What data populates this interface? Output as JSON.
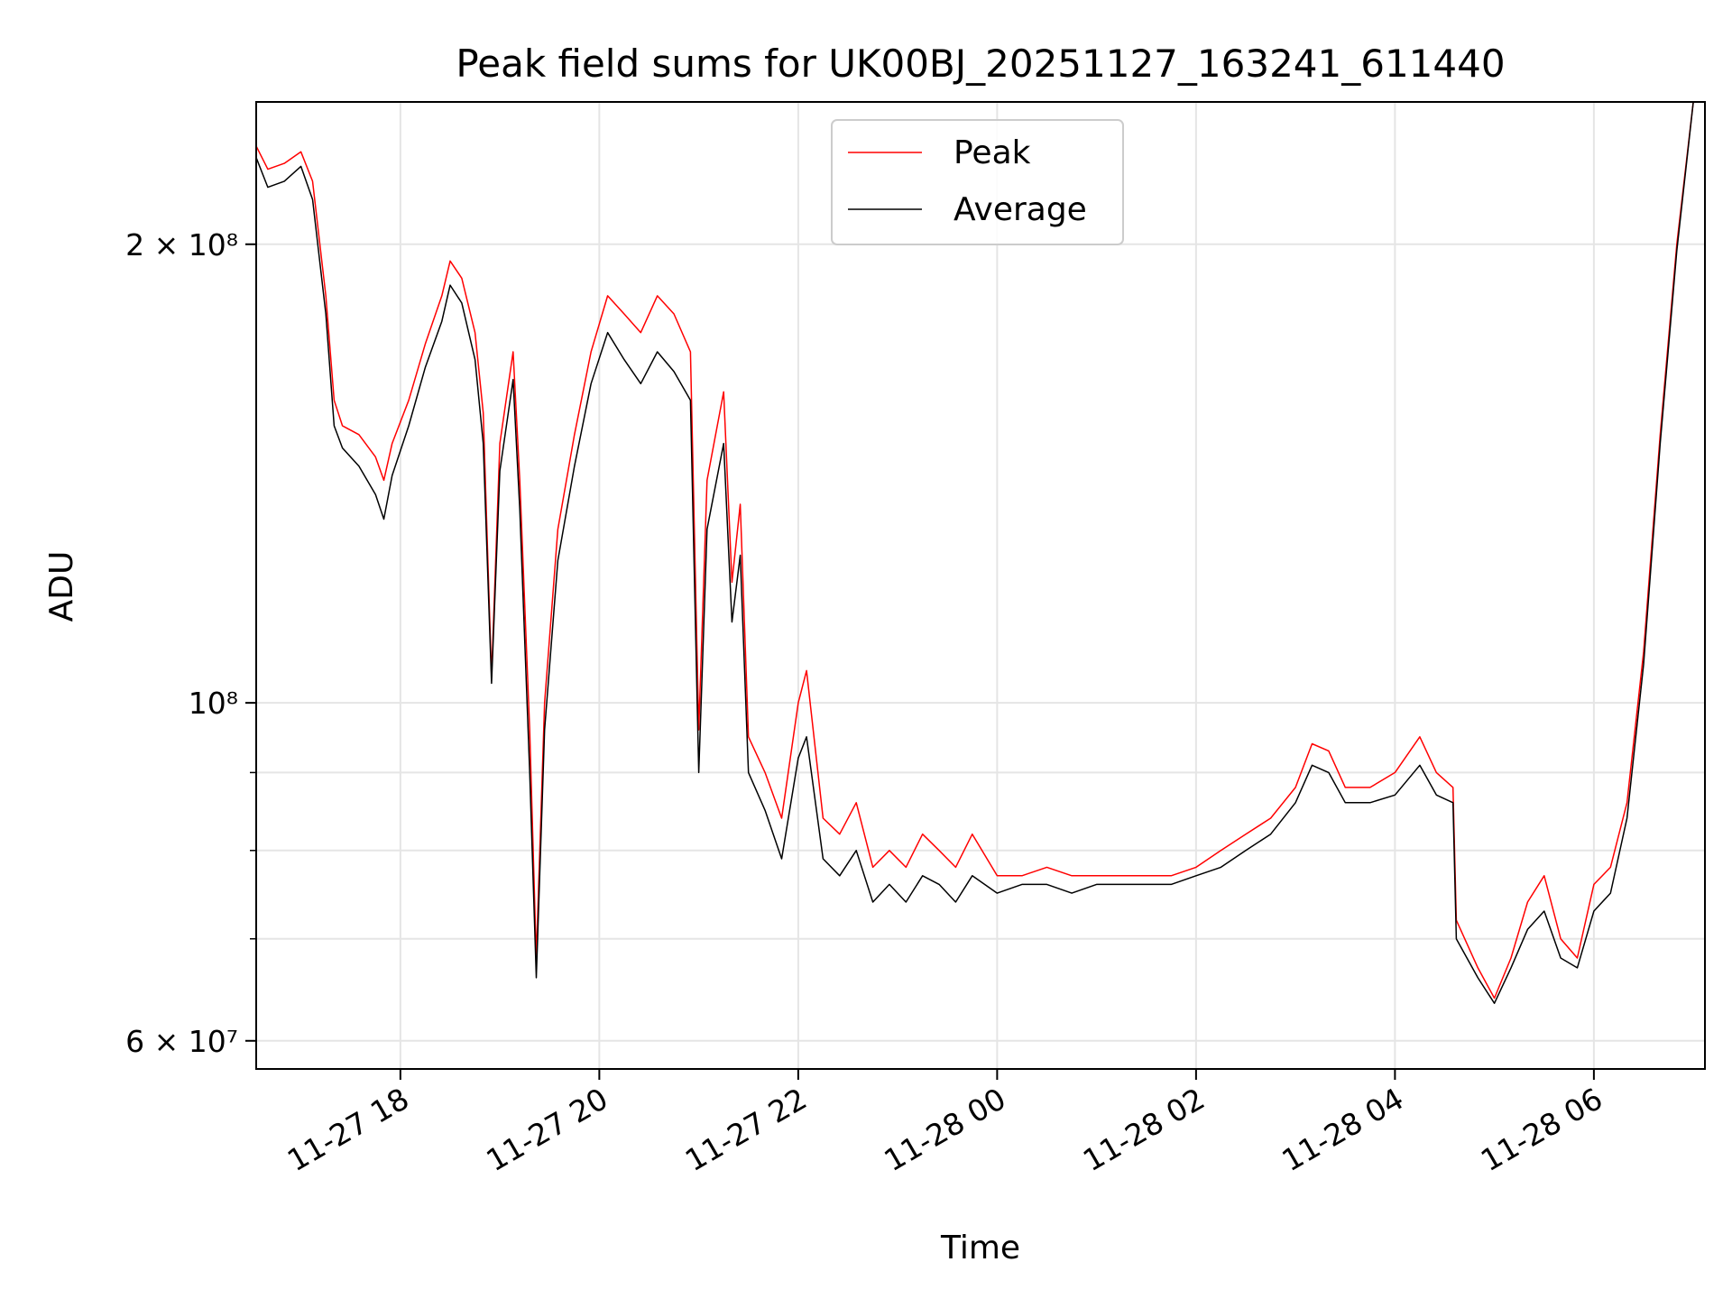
{
  "chart_data": {
    "type": "line",
    "title": "Peak field sums for UK00BJ_20251127_163241_611440",
    "xlabel": "Time",
    "ylabel": "ADU",
    "yscale": "log",
    "xlim": [
      "2025-11-27 16:33",
      "2025-11-28 07:07"
    ],
    "ylim": [
      57500000,
      248000000
    ],
    "grid": true,
    "legend_position": "upper center",
    "x_ticks": [
      {
        "t": "2025-11-27 18:00",
        "label": "11-27 18"
      },
      {
        "t": "2025-11-27 20:00",
        "label": "11-27 20"
      },
      {
        "t": "2025-11-27 22:00",
        "label": "11-27 22"
      },
      {
        "t": "2025-11-28 00:00",
        "label": "11-28 00"
      },
      {
        "t": "2025-11-28 02:00",
        "label": "11-28 02"
      },
      {
        "t": "2025-11-28 04:00",
        "label": "11-28 04"
      },
      {
        "t": "2025-11-28 06:00",
        "label": "11-28 06"
      }
    ],
    "y_ticks_major": [
      {
        "value": 60000000,
        "label": "6 × 10⁷"
      },
      {
        "value": 100000000,
        "label": "10⁸"
      },
      {
        "value": 200000000,
        "label": "2 × 10⁸"
      }
    ],
    "y_ticks_minor": [
      70000000,
      80000000,
      90000000
    ],
    "series": [
      {
        "name": "Peak",
        "color": "#ff0000",
        "points": [
          [
            "2025-11-27 16:33",
            232000000
          ],
          [
            "2025-11-27 16:40",
            224000000
          ],
          [
            "2025-11-27 16:50",
            226000000
          ],
          [
            "2025-11-27 17:00",
            230000000
          ],
          [
            "2025-11-27 17:07",
            220000000
          ],
          [
            "2025-11-27 17:15",
            185000000
          ],
          [
            "2025-11-27 17:20",
            158000000
          ],
          [
            "2025-11-27 17:25",
            152000000
          ],
          [
            "2025-11-27 17:35",
            150000000
          ],
          [
            "2025-11-27 17:45",
            145000000
          ],
          [
            "2025-11-27 17:50",
            140000000
          ],
          [
            "2025-11-27 17:55",
            148000000
          ],
          [
            "2025-11-27 18:05",
            158000000
          ],
          [
            "2025-11-27 18:15",
            172000000
          ],
          [
            "2025-11-27 18:25",
            185000000
          ],
          [
            "2025-11-27 18:30",
            195000000
          ],
          [
            "2025-11-27 18:37",
            190000000
          ],
          [
            "2025-11-27 18:45",
            175000000
          ],
          [
            "2025-11-27 18:50",
            155000000
          ],
          [
            "2025-11-27 18:55",
            104000000
          ],
          [
            "2025-11-27 19:00",
            148000000
          ],
          [
            "2025-11-27 19:08",
            170000000
          ],
          [
            "2025-11-27 19:12",
            140000000
          ],
          [
            "2025-11-27 19:18",
            96000000
          ],
          [
            "2025-11-27 19:22",
            68000000
          ],
          [
            "2025-11-27 19:27",
            100000000
          ],
          [
            "2025-11-27 19:35",
            130000000
          ],
          [
            "2025-11-27 19:45",
            150000000
          ],
          [
            "2025-11-27 19:55",
            170000000
          ],
          [
            "2025-11-27 20:05",
            185000000
          ],
          [
            "2025-11-27 20:15",
            180000000
          ],
          [
            "2025-11-27 20:25",
            175000000
          ],
          [
            "2025-11-27 20:35",
            185000000
          ],
          [
            "2025-11-27 20:45",
            180000000
          ],
          [
            "2025-11-27 20:55",
            170000000
          ],
          [
            "2025-11-27 21:00",
            96000000
          ],
          [
            "2025-11-27 21:05",
            140000000
          ],
          [
            "2025-11-27 21:15",
            160000000
          ],
          [
            "2025-11-27 21:20",
            120000000
          ],
          [
            "2025-11-27 21:25",
            135000000
          ],
          [
            "2025-11-27 21:30",
            95000000
          ],
          [
            "2025-11-27 21:40",
            90000000
          ],
          [
            "2025-11-27 21:50",
            84000000
          ],
          [
            "2025-11-27 22:00",
            100000000
          ],
          [
            "2025-11-27 22:05",
            105000000
          ],
          [
            "2025-11-27 22:15",
            84000000
          ],
          [
            "2025-11-27 22:25",
            82000000
          ],
          [
            "2025-11-27 22:35",
            86000000
          ],
          [
            "2025-11-27 22:45",
            78000000
          ],
          [
            "2025-11-27 22:55",
            80000000
          ],
          [
            "2025-11-27 23:05",
            78000000
          ],
          [
            "2025-11-27 23:15",
            82000000
          ],
          [
            "2025-11-27 23:25",
            80000000
          ],
          [
            "2025-11-27 23:35",
            78000000
          ],
          [
            "2025-11-27 23:45",
            82000000
          ],
          [
            "2025-11-28 00:00",
            77000000
          ],
          [
            "2025-11-28 00:15",
            77000000
          ],
          [
            "2025-11-28 00:30",
            78000000
          ],
          [
            "2025-11-28 00:45",
            77000000
          ],
          [
            "2025-11-28 01:00",
            77000000
          ],
          [
            "2025-11-28 01:15",
            77000000
          ],
          [
            "2025-11-28 01:30",
            77000000
          ],
          [
            "2025-11-28 01:45",
            77000000
          ],
          [
            "2025-11-28 02:00",
            78000000
          ],
          [
            "2025-11-28 02:15",
            80000000
          ],
          [
            "2025-11-28 02:30",
            82000000
          ],
          [
            "2025-11-28 02:45",
            84000000
          ],
          [
            "2025-11-28 03:00",
            88000000
          ],
          [
            "2025-11-28 03:10",
            94000000
          ],
          [
            "2025-11-28 03:20",
            93000000
          ],
          [
            "2025-11-28 03:30",
            88000000
          ],
          [
            "2025-11-28 03:45",
            88000000
          ],
          [
            "2025-11-28 04:00",
            90000000
          ],
          [
            "2025-11-28 04:15",
            95000000
          ],
          [
            "2025-11-28 04:25",
            90000000
          ],
          [
            "2025-11-28 04:35",
            88000000
          ],
          [
            "2025-11-28 04:37",
            72000000
          ],
          [
            "2025-11-28 04:50",
            67000000
          ],
          [
            "2025-11-28 05:00",
            64000000
          ],
          [
            "2025-11-28 05:10",
            68000000
          ],
          [
            "2025-11-28 05:20",
            74000000
          ],
          [
            "2025-11-28 05:30",
            77000000
          ],
          [
            "2025-11-28 05:40",
            70000000
          ],
          [
            "2025-11-28 05:50",
            68000000
          ],
          [
            "2025-11-28 06:00",
            76000000
          ],
          [
            "2025-11-28 06:10",
            78000000
          ],
          [
            "2025-11-28 06:20",
            86000000
          ],
          [
            "2025-11-28 06:30",
            108000000
          ],
          [
            "2025-11-28 06:40",
            150000000
          ],
          [
            "2025-11-28 06:50",
            200000000
          ],
          [
            "2025-11-28 07:00",
            248000000
          ]
        ]
      },
      {
        "name": "Average",
        "color": "#000000",
        "points": [
          [
            "2025-11-27 16:33",
            228000000
          ],
          [
            "2025-11-27 16:40",
            218000000
          ],
          [
            "2025-11-27 16:50",
            220000000
          ],
          [
            "2025-11-27 17:00",
            225000000
          ],
          [
            "2025-11-27 17:07",
            214000000
          ],
          [
            "2025-11-27 17:15",
            180000000
          ],
          [
            "2025-11-27 17:20",
            152000000
          ],
          [
            "2025-11-27 17:25",
            147000000
          ],
          [
            "2025-11-27 17:35",
            143000000
          ],
          [
            "2025-11-27 17:45",
            137000000
          ],
          [
            "2025-11-27 17:50",
            132000000
          ],
          [
            "2025-11-27 17:55",
            141000000
          ],
          [
            "2025-11-27 18:05",
            152000000
          ],
          [
            "2025-11-27 18:15",
            166000000
          ],
          [
            "2025-11-27 18:25",
            178000000
          ],
          [
            "2025-11-27 18:30",
            188000000
          ],
          [
            "2025-11-27 18:37",
            183000000
          ],
          [
            "2025-11-27 18:45",
            168000000
          ],
          [
            "2025-11-27 18:50",
            148000000
          ],
          [
            "2025-11-27 18:55",
            103000000
          ],
          [
            "2025-11-27 19:00",
            142000000
          ],
          [
            "2025-11-27 19:08",
            163000000
          ],
          [
            "2025-11-27 19:12",
            134000000
          ],
          [
            "2025-11-27 19:18",
            90000000
          ],
          [
            "2025-11-27 19:22",
            66000000
          ],
          [
            "2025-11-27 19:27",
            96000000
          ],
          [
            "2025-11-27 19:35",
            124000000
          ],
          [
            "2025-11-27 19:45",
            143000000
          ],
          [
            "2025-11-27 19:55",
            162000000
          ],
          [
            "2025-11-27 20:05",
            175000000
          ],
          [
            "2025-11-27 20:15",
            168000000
          ],
          [
            "2025-11-27 20:25",
            162000000
          ],
          [
            "2025-11-27 20:35",
            170000000
          ],
          [
            "2025-11-27 20:45",
            165000000
          ],
          [
            "2025-11-27 20:55",
            158000000
          ],
          [
            "2025-11-27 21:00",
            90000000
          ],
          [
            "2025-11-27 21:05",
            130000000
          ],
          [
            "2025-11-27 21:15",
            148000000
          ],
          [
            "2025-11-27 21:20",
            113000000
          ],
          [
            "2025-11-27 21:25",
            125000000
          ],
          [
            "2025-11-27 21:30",
            90000000
          ],
          [
            "2025-11-27 21:40",
            85000000
          ],
          [
            "2025-11-27 21:50",
            79000000
          ],
          [
            "2025-11-27 22:00",
            92000000
          ],
          [
            "2025-11-27 22:05",
            95000000
          ],
          [
            "2025-11-27 22:15",
            79000000
          ],
          [
            "2025-11-27 22:25",
            77000000
          ],
          [
            "2025-11-27 22:35",
            80000000
          ],
          [
            "2025-11-27 22:45",
            74000000
          ],
          [
            "2025-11-27 22:55",
            76000000
          ],
          [
            "2025-11-27 23:05",
            74000000
          ],
          [
            "2025-11-27 23:15",
            77000000
          ],
          [
            "2025-11-27 23:25",
            76000000
          ],
          [
            "2025-11-27 23:35",
            74000000
          ],
          [
            "2025-11-27 23:45",
            77000000
          ],
          [
            "2025-11-28 00:00",
            75000000
          ],
          [
            "2025-11-28 00:15",
            76000000
          ],
          [
            "2025-11-28 00:30",
            76000000
          ],
          [
            "2025-11-28 00:45",
            75000000
          ],
          [
            "2025-11-28 01:00",
            76000000
          ],
          [
            "2025-11-28 01:15",
            76000000
          ],
          [
            "2025-11-28 01:30",
            76000000
          ],
          [
            "2025-11-28 01:45",
            76000000
          ],
          [
            "2025-11-28 02:00",
            77000000
          ],
          [
            "2025-11-28 02:15",
            78000000
          ],
          [
            "2025-11-28 02:30",
            80000000
          ],
          [
            "2025-11-28 02:45",
            82000000
          ],
          [
            "2025-11-28 03:00",
            86000000
          ],
          [
            "2025-11-28 03:10",
            91000000
          ],
          [
            "2025-11-28 03:20",
            90000000
          ],
          [
            "2025-11-28 03:30",
            86000000
          ],
          [
            "2025-11-28 03:45",
            86000000
          ],
          [
            "2025-11-28 04:00",
            87000000
          ],
          [
            "2025-11-28 04:15",
            91000000
          ],
          [
            "2025-11-28 04:25",
            87000000
          ],
          [
            "2025-11-28 04:35",
            86000000
          ],
          [
            "2025-11-28 04:37",
            70000000
          ],
          [
            "2025-11-28 04:50",
            66000000
          ],
          [
            "2025-11-28 05:00",
            63500000
          ],
          [
            "2025-11-28 05:10",
            67000000
          ],
          [
            "2025-11-28 05:20",
            71000000
          ],
          [
            "2025-11-28 05:30",
            73000000
          ],
          [
            "2025-11-28 05:40",
            68000000
          ],
          [
            "2025-11-28 05:50",
            67000000
          ],
          [
            "2025-11-28 06:00",
            73000000
          ],
          [
            "2025-11-28 06:10",
            75000000
          ],
          [
            "2025-11-28 06:20",
            84000000
          ],
          [
            "2025-11-28 06:30",
            106000000
          ],
          [
            "2025-11-28 06:40",
            148000000
          ],
          [
            "2025-11-28 06:50",
            198000000
          ],
          [
            "2025-11-28 07:00",
            248000000
          ]
        ]
      }
    ]
  }
}
